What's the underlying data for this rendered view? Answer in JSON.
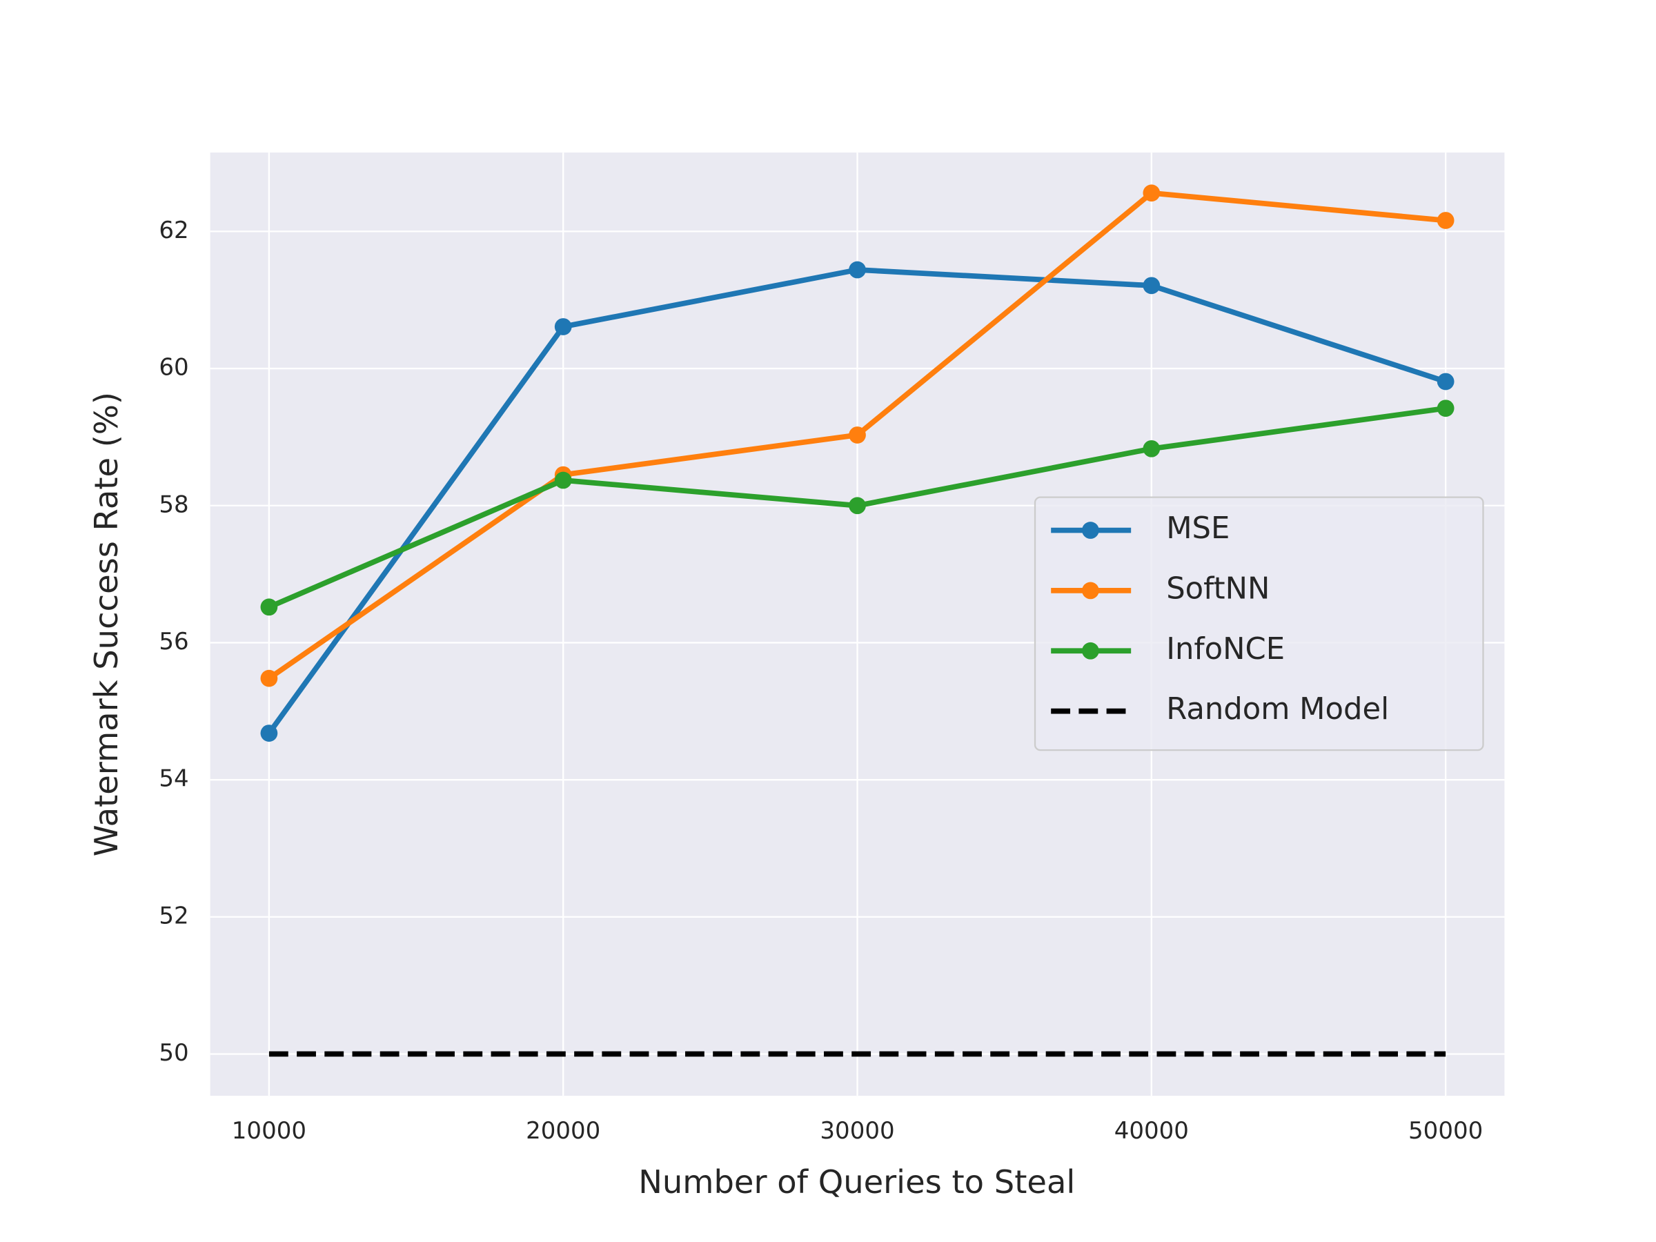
{
  "chart_data": {
    "type": "line",
    "xlabel": "Number of Queries to Steal",
    "ylabel": "Watermark Success Rate (%)",
    "x": [
      10000,
      20000,
      30000,
      40000,
      50000
    ],
    "xlim": [
      8000,
      52000
    ],
    "xticks": [
      10000,
      20000,
      30000,
      40000,
      50000
    ],
    "ylim": [
      49.39,
      63.15
    ],
    "yticks": [
      50,
      52,
      54,
      56,
      58,
      60,
      62
    ],
    "grid": true,
    "legend": "center right",
    "series": [
      {
        "name": "MSE",
        "color": "#1f77b4",
        "marker": "o",
        "values": [
          54.68,
          60.61,
          61.44,
          61.21,
          59.81
        ]
      },
      {
        "name": "SoftNN",
        "color": "#ff7f0e",
        "marker": "o",
        "values": [
          55.48,
          58.45,
          59.03,
          62.56,
          62.16
        ]
      },
      {
        "name": "InfoNCE",
        "color": "#2ca02c",
        "marker": "o",
        "values": [
          56.52,
          58.37,
          58.0,
          58.83,
          59.42
        ]
      },
      {
        "name": "Random Model",
        "color": "#000000",
        "linestyle": "dashed",
        "values": [
          50,
          50,
          50,
          50,
          50
        ]
      }
    ]
  }
}
